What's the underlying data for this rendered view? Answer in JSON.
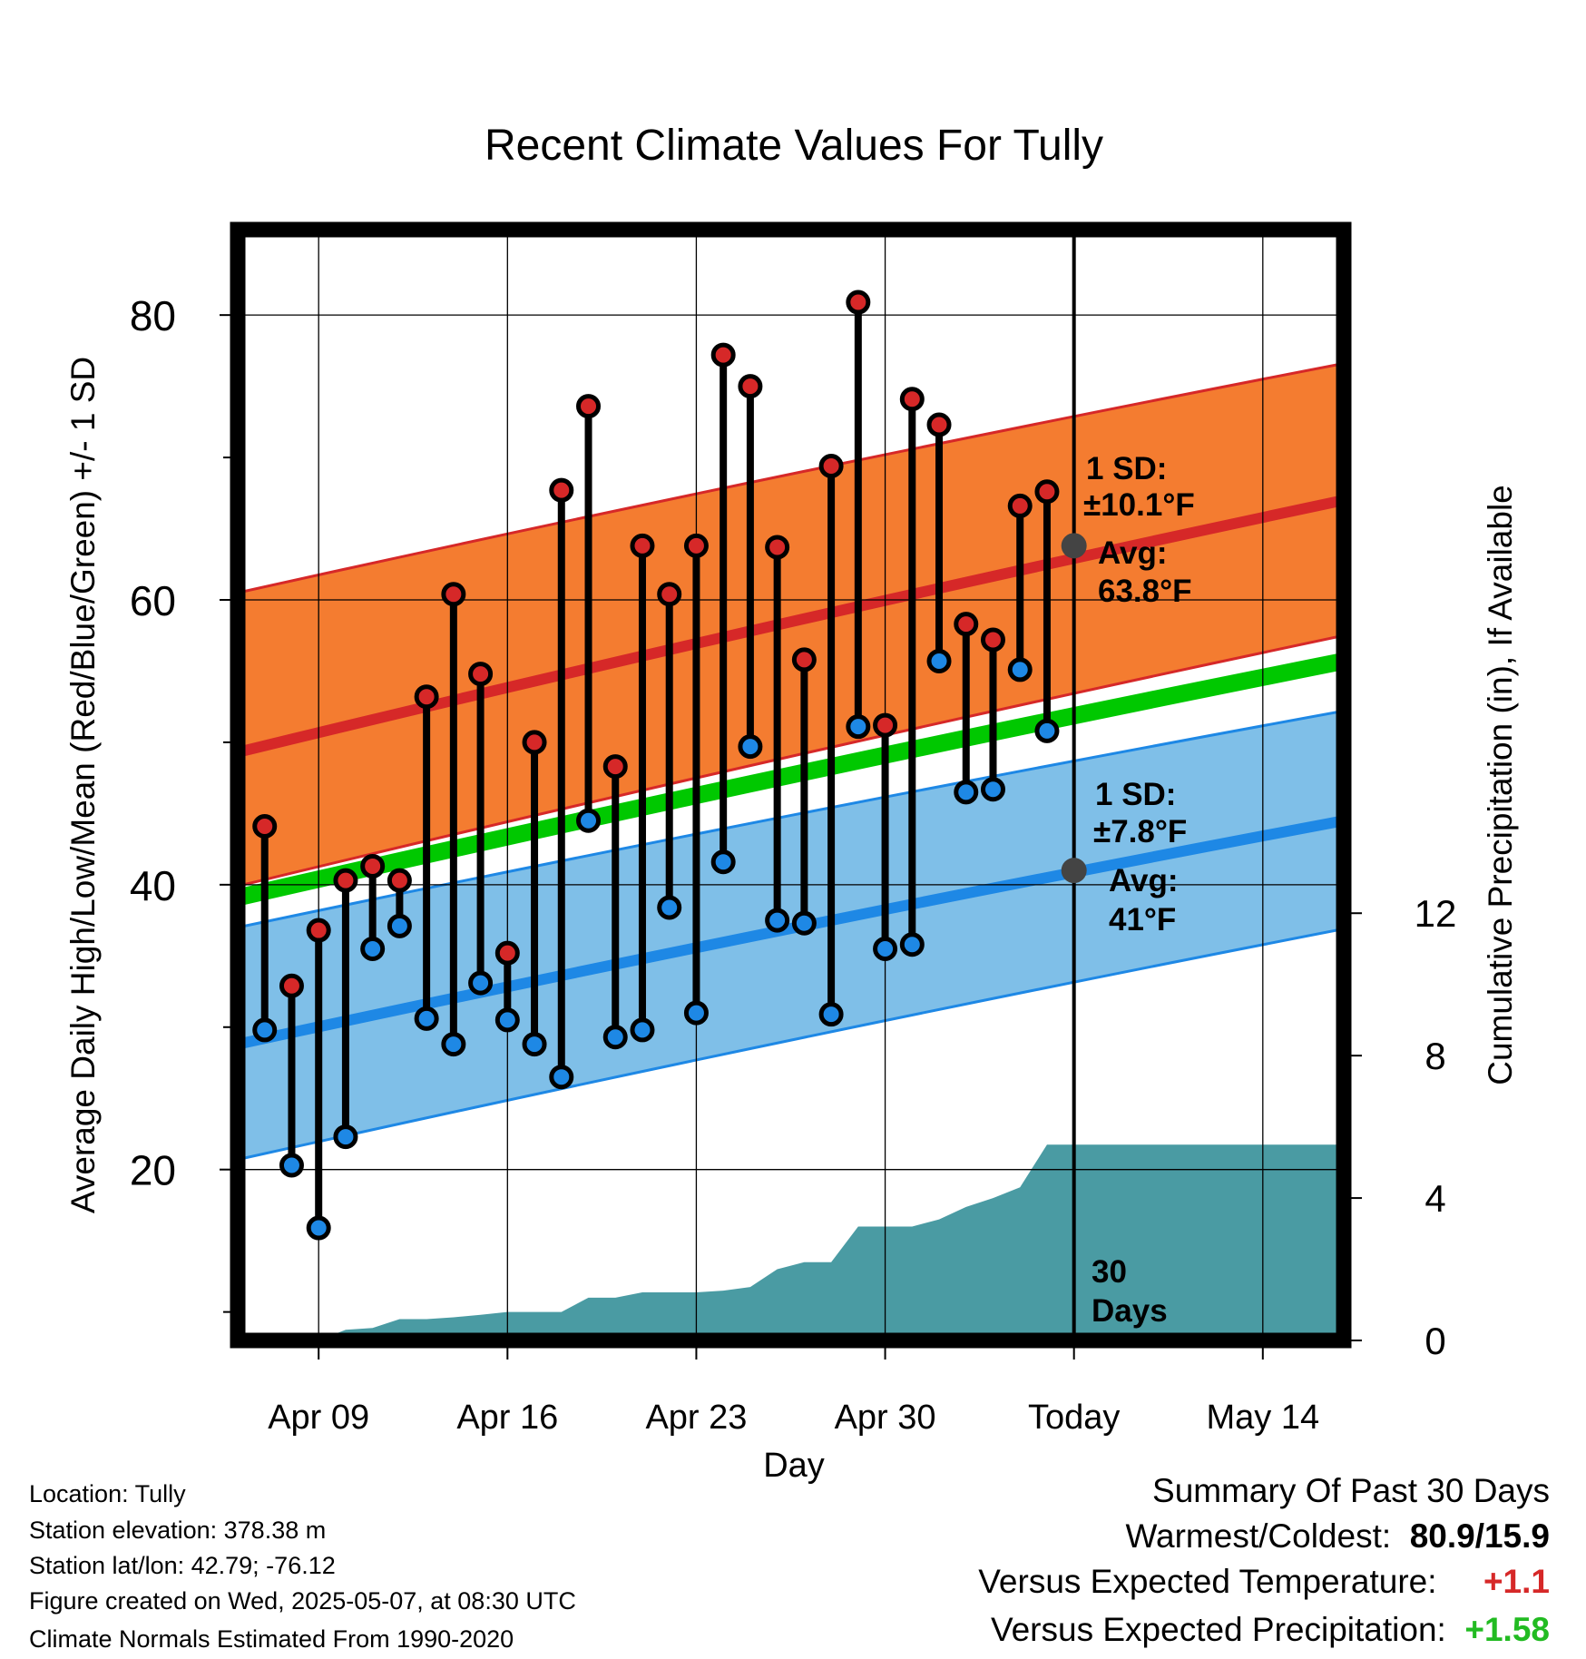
{
  "chart_data": {
    "type": "line",
    "title": "Recent Climate Values For Tully",
    "xlabel": "Day",
    "ylabel": "Average Daily High/Low/Mean (Red/Blue/Green) +/- 1 SD",
    "ylabel_right": "Cumulative Precipitation (in), If Available",
    "x_range_days": [
      0,
      41
    ],
    "x_ticks": [
      {
        "day": 3,
        "label": "Apr 09"
      },
      {
        "day": 10,
        "label": "Apr 16"
      },
      {
        "day": 17,
        "label": "Apr 23"
      },
      {
        "day": 24,
        "label": "Apr 30"
      },
      {
        "day": 31,
        "label": "Today"
      },
      {
        "day": 38,
        "label": "May 14"
      }
    ],
    "ylim": [
      8,
      86
    ],
    "y_ticks": [
      20,
      40,
      60,
      80
    ],
    "y2lim": [
      0,
      31.2
    ],
    "y2_ticks": [
      0,
      4,
      8,
      12
    ],
    "today_day": 31,
    "days_label": "30\nDays",
    "normals": {
      "x": [
        0,
        41
      ],
      "high_mean": [
        49.3,
        67.0
      ],
      "high_upper": [
        60.5,
        76.6
      ],
      "high_lower": [
        39.9,
        57.5
      ],
      "low_mean": [
        28.8,
        44.5
      ],
      "low_upper": [
        37.0,
        52.2
      ],
      "low_lower": [
        20.7,
        36.9
      ],
      "avg_mean": [
        39.1,
        55.7
      ]
    },
    "high_sd_label": [
      "1 SD:",
      "±10.1°F",
      "Avg:",
      "63.8°F"
    ],
    "low_sd_label": [
      "1 SD:",
      "±7.8°F",
      "Avg:",
      "41°F"
    ],
    "today_high_avg": 63.8,
    "today_low_avg": 41,
    "observed": {
      "days": [
        1,
        2,
        3,
        4,
        5,
        6,
        7,
        8,
        9,
        10,
        11,
        12,
        13,
        14,
        15,
        16,
        17,
        18,
        19,
        20,
        21,
        22,
        23,
        24,
        25,
        26,
        27,
        28,
        29,
        30
      ],
      "high": [
        44.1,
        32.9,
        36.8,
        40.3,
        41.3,
        40.3,
        53.2,
        60.4,
        54.8,
        35.2,
        50.0,
        67.7,
        73.6,
        48.3,
        63.8,
        60.4,
        63.8,
        77.2,
        75.0,
        63.7,
        55.8,
        69.4,
        80.9,
        51.2,
        74.1,
        72.3,
        58.3,
        57.2,
        66.6,
        67.6
      ],
      "low": [
        29.8,
        20.3,
        15.9,
        22.3,
        35.5,
        37.1,
        30.6,
        28.8,
        33.1,
        30.5,
        28.8,
        26.5,
        44.5,
        29.3,
        29.8,
        38.4,
        31.0,
        41.6,
        49.7,
        37.5,
        37.3,
        30.9,
        51.1,
        35.5,
        35.8,
        55.7,
        46.5,
        46.7,
        55.1,
        50.8
      ]
    },
    "precip": {
      "days": [
        0,
        3,
        4,
        5,
        6,
        7,
        8,
        9,
        10,
        11,
        12,
        13,
        14,
        15,
        16,
        17,
        18,
        19,
        20,
        21,
        22,
        23,
        24,
        25,
        26,
        27,
        28,
        29,
        30,
        31,
        41
      ],
      "cum": [
        0,
        0,
        0.3,
        0.35,
        0.6,
        0.6,
        0.65,
        0.72,
        0.8,
        0.8,
        0.8,
        1.2,
        1.2,
        1.35,
        1.35,
        1.35,
        1.4,
        1.5,
        2.0,
        2.2,
        2.2,
        3.2,
        3.2,
        3.2,
        3.4,
        3.75,
        4.0,
        4.3,
        5.5,
        5.5,
        5.5
      ]
    },
    "colors": {
      "high_band": "#F47C30",
      "high_line": "#D62828",
      "low_band": "#7FBFE8",
      "low_line": "#1E88E5",
      "avg_line": "#00C800",
      "precip_fill": "#4A9BA3",
      "high_marker": "#D62828",
      "low_marker": "#1E88E5",
      "sd_text": "#555555",
      "avg_dot": "#444444"
    },
    "grid": true
  },
  "footer": {
    "location": "Location: Tully",
    "elevation": "Station elevation: 378.38 m",
    "latlon": "Station lat/lon: 42.79; -76.12",
    "created": "Figure created on Wed, 2025-05-07, at 08:30 UTC",
    "normals": "Climate Normals Estimated From 1990-2020"
  },
  "summary": {
    "title": "Summary Of Past 30 Days",
    "warm_label": "Warmest/Coldest:",
    "warm_value": "80.9/15.9",
    "temp_label": "Versus Expected Temperature:",
    "temp_value": "+1.1",
    "temp_color": "#D62828",
    "precip_label": "Versus Expected Precipitation:",
    "precip_value": "+1.58",
    "precip_color": "#22BB22"
  }
}
